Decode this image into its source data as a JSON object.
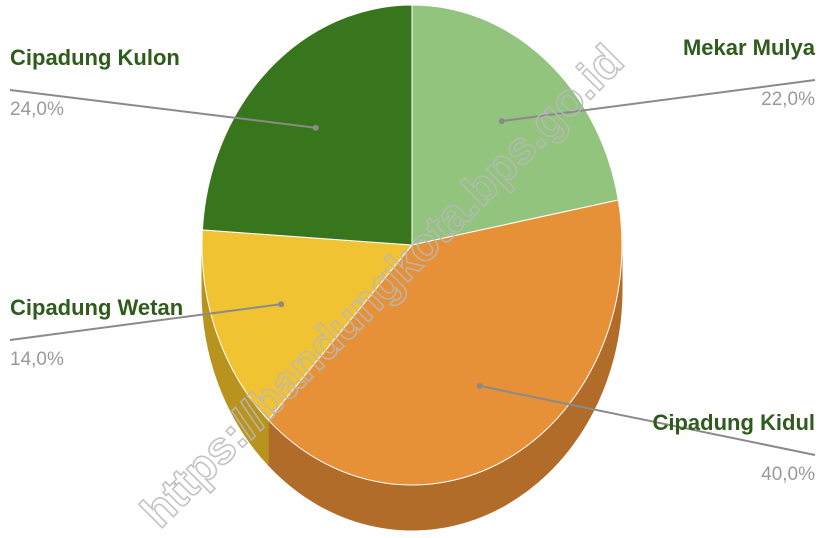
{
  "chart_data": {
    "type": "pie",
    "style": "3d",
    "slices": [
      {
        "label": "Mekar Mulya",
        "value": 22.0,
        "display": "22,0%",
        "color": "#93c47d",
        "side_color": "#6f9a5c"
      },
      {
        "label": "Cipadung Kidul",
        "value": 40.0,
        "display": "40,0%",
        "color": "#e69138",
        "side_color": "#b06c28"
      },
      {
        "label": "Cipadung Wetan",
        "value": 14.0,
        "display": "14,0%",
        "color": "#f1c232",
        "side_color": "#b8941f"
      },
      {
        "label": "Cipadung Kulon",
        "value": 24.0,
        "display": "24,0%",
        "color": "#38761d",
        "side_color": "#275214"
      }
    ],
    "start_angle_deg": 0,
    "direction": "clockwise"
  },
  "watermark": "https://bandungkota.bps.go.id"
}
